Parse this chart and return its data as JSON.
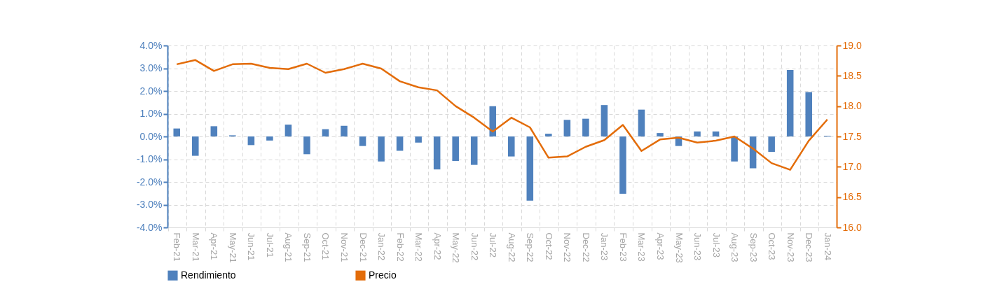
{
  "chart_data": {
    "type": "bar",
    "categories": [
      "Feb-21",
      "Mar-21",
      "Apr-21",
      "May-21",
      "Jun-21",
      "Jul-21",
      "Aug-21",
      "Sep-21",
      "Oct-21",
      "Nov-21",
      "Dec-21",
      "Jan-22",
      "Feb-22",
      "Mar-22",
      "Apr-22",
      "May-22",
      "Jun-22",
      "Jul-22",
      "Aug-22",
      "Sep-22",
      "Oct-22",
      "Nov-22",
      "Dec-22",
      "Jan-23",
      "Feb-23",
      "Mar-23",
      "Apr-23",
      "May-23",
      "Jun-23",
      "Jul-23",
      "Aug-23",
      "Sep-23",
      "Oct-23",
      "Nov-23",
      "Dec-23",
      "Jan-24"
    ],
    "series": [
      {
        "name": "Rendimiento",
        "color": "#4f81bd",
        "values": [
          0.35,
          -0.85,
          0.45,
          0.05,
          -0.38,
          -0.18,
          0.52,
          -0.78,
          0.32,
          0.47,
          -0.42,
          -1.1,
          -0.63,
          -0.27,
          -1.45,
          -1.08,
          -1.25,
          1.33,
          -0.88,
          -2.82,
          0.12,
          0.73,
          0.78,
          1.38,
          -2.52,
          1.18,
          0.15,
          -0.42,
          0.22,
          0.22,
          -1.1,
          -1.4,
          -0.68,
          2.92,
          1.95,
          0.03
        ]
      },
      {
        "name": "Precio",
        "type": "line",
        "axis": "y2",
        "color": "#e36c09",
        "values": [
          18.69,
          18.76,
          18.58,
          18.69,
          18.7,
          18.63,
          18.61,
          18.7,
          18.55,
          18.61,
          18.7,
          18.62,
          18.41,
          18.31,
          18.26,
          18.0,
          17.81,
          17.58,
          17.81,
          17.65,
          17.15,
          17.17,
          17.33,
          17.44,
          17.69,
          17.26,
          17.45,
          17.48,
          17.4,
          17.43,
          17.5,
          17.3,
          17.06,
          16.95,
          17.43,
          17.78
        ]
      }
    ],
    "ylim": [
      -4,
      4
    ],
    "yticks": [
      {
        "value": -4,
        "label": "-4.0%"
      },
      {
        "value": -3,
        "label": "-3.0%"
      },
      {
        "value": -2,
        "label": "-2.0%"
      },
      {
        "value": -1,
        "label": "-1.0%"
      },
      {
        "value": 0,
        "label": "0.0%"
      },
      {
        "value": 1,
        "label": "1.0%"
      },
      {
        "value": 2,
        "label": "2.0%"
      },
      {
        "value": 3,
        "label": "3.0%"
      },
      {
        "value": 4,
        "label": "4.0%"
      }
    ],
    "y2lim": [
      16,
      19
    ],
    "y2ticks": [
      {
        "value": 16,
        "label": "16.0"
      },
      {
        "value": 16.5,
        "label": "16.5"
      },
      {
        "value": 17,
        "label": "17.0"
      },
      {
        "value": 17.5,
        "label": "17.5"
      },
      {
        "value": 18,
        "label": "18.0"
      },
      {
        "value": 18.5,
        "label": "18.5"
      },
      {
        "value": 19,
        "label": "19.0"
      }
    ],
    "grid": true,
    "legend": "bottom"
  }
}
